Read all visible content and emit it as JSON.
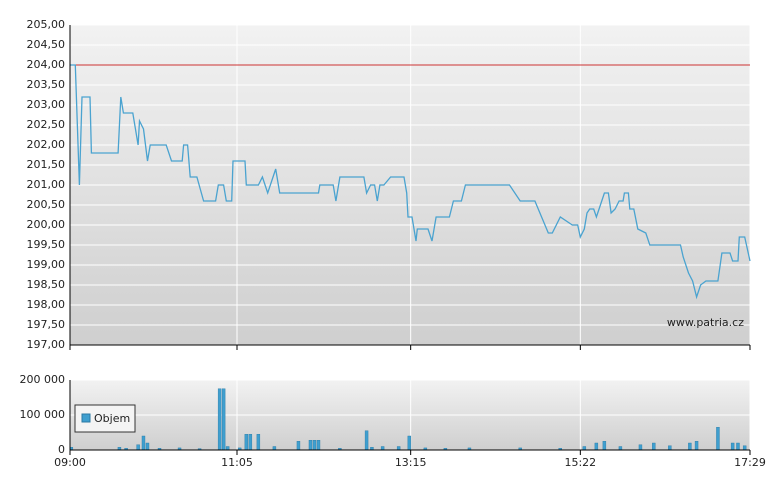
{
  "chart_data": [
    {
      "type": "line",
      "color": "#4aa3d0",
      "reference_line": 204,
      "reference_color": "#cc3333",
      "annotation": "www.patria.cz",
      "xlim": [
        540,
        1049
      ],
      "ylim": [
        197,
        205
      ],
      "grid": true,
      "yticks": [
        {
          "value": 197,
          "label": "197,00"
        },
        {
          "value": 197.5,
          "label": "197,50"
        },
        {
          "value": 198,
          "label": "198,00"
        },
        {
          "value": 198.5,
          "label": "198,50"
        },
        {
          "value": 199,
          "label": "199,00"
        },
        {
          "value": 199.5,
          "label": "199,50"
        },
        {
          "value": 200,
          "label": "200,00"
        },
        {
          "value": 200.5,
          "label": "200,50"
        },
        {
          "value": 201,
          "label": "201,00"
        },
        {
          "value": 201.5,
          "label": "201,50"
        },
        {
          "value": 202,
          "label": "202,00"
        },
        {
          "value": 202.5,
          "label": "202,50"
        },
        {
          "value": 203,
          "label": "203,00"
        },
        {
          "value": 203.5,
          "label": "203,50"
        },
        {
          "value": 204,
          "label": "204,00"
        },
        {
          "value": 204.5,
          "label": "204,50"
        },
        {
          "value": 205,
          "label": "205,00"
        }
      ],
      "x": [
        540,
        544,
        547,
        549,
        555,
        556,
        576,
        578,
        580,
        587,
        591,
        592,
        595,
        598,
        600,
        612,
        616,
        624,
        625,
        628,
        630,
        635,
        640,
        649,
        651,
        655,
        657,
        661,
        662,
        671,
        672,
        681,
        684,
        688,
        694,
        697,
        726,
        727,
        737,
        739,
        742,
        760,
        762,
        765,
        768,
        770,
        772,
        775,
        780,
        784,
        790,
        792,
        793,
        796,
        799,
        800,
        808,
        811,
        814,
        824,
        827,
        833,
        836,
        869,
        877,
        888,
        898,
        901,
        907,
        916,
        920,
        922,
        925,
        927,
        929,
        932,
        934,
        937,
        940,
        943,
        945,
        948,
        951,
        954,
        955,
        958,
        959,
        962,
        965,
        971,
        974,
        997,
        999,
        1003,
        1006,
        1009,
        1012,
        1016,
        1025,
        1028,
        1034,
        1036,
        1040,
        1041,
        1045,
        1049
      ],
      "values": [
        204,
        204,
        201,
        203.2,
        203.2,
        201.8,
        201.8,
        203.2,
        202.8,
        202.8,
        202,
        202.6,
        202.4,
        201.6,
        202,
        202,
        201.6,
        201.6,
        202,
        202,
        201.2,
        201.2,
        200.6,
        200.6,
        201,
        201,
        200.6,
        200.6,
        201.6,
        201.6,
        201,
        201,
        201.2,
        200.8,
        201.4,
        200.8,
        200.8,
        201,
        201,
        200.6,
        201.2,
        201.2,
        200.8,
        201,
        201,
        200.6,
        201,
        201,
        201.2,
        201.2,
        201.2,
        200.8,
        200.2,
        200.2,
        199.6,
        199.9,
        199.9,
        199.6,
        200.2,
        200.2,
        200.6,
        200.6,
        201,
        201,
        200.6,
        200.6,
        199.8,
        199.8,
        200.2,
        200,
        200,
        199.7,
        199.9,
        200.3,
        200.4,
        200.4,
        200.2,
        200.5,
        200.8,
        200.8,
        200.3,
        200.4,
        200.6,
        200.6,
        200.8,
        200.8,
        200.4,
        200.4,
        199.9,
        199.8,
        199.5,
        199.5,
        199.2,
        198.8,
        198.6,
        198.2,
        198.5,
        198.6,
        198.6,
        199.3,
        199.3,
        199.1,
        199.1,
        199.7,
        199.7,
        199.1
      ]
    },
    {
      "type": "bar",
      "xlim": [
        540,
        1049
      ],
      "ylim": [
        0,
        200000
      ],
      "grid": true,
      "yticks": [
        0,
        {
          "value": 100000,
          "label": "100 000"
        },
        {
          "value": 200000,
          "label": "200 000"
        }
      ],
      "xticks": [
        {
          "value": 540,
          "label": "09:00"
        },
        {
          "value": 665,
          "label": "11:05"
        },
        {
          "value": 795,
          "label": "13:15"
        },
        {
          "value": 922,
          "label": "15:22"
        },
        {
          "value": 1049,
          "label": "17:29"
        }
      ],
      "x": [
        541,
        577,
        582,
        591,
        595,
        598,
        607,
        622,
        637,
        652,
        655,
        658,
        667,
        672,
        675,
        681,
        693,
        711,
        720,
        723,
        726,
        742,
        762,
        766,
        774,
        786,
        794,
        806,
        821,
        839,
        877,
        907,
        925,
        934,
        940,
        952,
        967,
        977,
        989,
        1004,
        1009,
        1025,
        1036,
        1040,
        1045
      ],
      "series": [
        {
          "name": "Objem",
          "color": "#3f9fcf",
          "values": [
            8000,
            8000,
            5000,
            15000,
            40000,
            20000,
            5000,
            6000,
            4000,
            175000,
            175000,
            10000,
            6000,
            45000,
            45000,
            45000,
            10000,
            25000,
            28000,
            28000,
            28000,
            5000,
            55000,
            8000,
            10000,
            10000,
            40000,
            6000,
            5000,
            6000,
            6000,
            5000,
            10000,
            20000,
            25000,
            10000,
            15000,
            20000,
            12000,
            20000,
            25000,
            65000,
            20000,
            20000,
            12000
          ]
        }
      ]
    }
  ]
}
